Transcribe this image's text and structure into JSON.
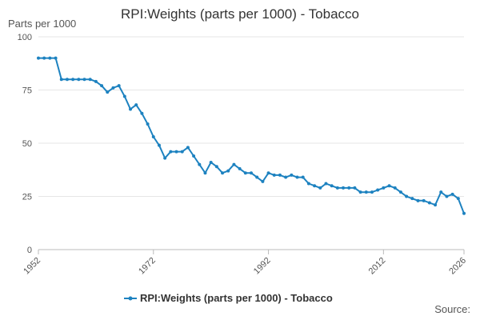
{
  "chart_data": {
    "type": "line",
    "title": "RPI:Weights (parts per 1000) - Tobacco",
    "ylabel": "Parts per 1000",
    "xlabel": "",
    "xlim": [
      1952,
      2026
    ],
    "ylim": [
      0,
      100
    ],
    "y_ticks": [
      0,
      25,
      50,
      75,
      100
    ],
    "x_ticks": [
      1952,
      1972,
      1992,
      2012,
      2026
    ],
    "grid": true,
    "legend_position": "bottom",
    "color": "#1d82c0",
    "series": [
      {
        "name": "RPI:Weights (parts per 1000) - Tobacco",
        "x": [
          1952,
          1953,
          1954,
          1955,
          1956,
          1957,
          1958,
          1959,
          1960,
          1961,
          1962,
          1963,
          1964,
          1965,
          1966,
          1967,
          1968,
          1969,
          1970,
          1971,
          1972,
          1973,
          1974,
          1975,
          1976,
          1977,
          1978,
          1979,
          1980,
          1981,
          1982,
          1983,
          1984,
          1985,
          1986,
          1987,
          1988,
          1989,
          1990,
          1991,
          1992,
          1993,
          1994,
          1995,
          1996,
          1997,
          1998,
          1999,
          2000,
          2001,
          2002,
          2003,
          2004,
          2005,
          2006,
          2007,
          2008,
          2009,
          2010,
          2011,
          2012,
          2013,
          2014,
          2015,
          2016,
          2017,
          2018,
          2019,
          2020,
          2021,
          2022,
          2023,
          2024,
          2025,
          2026
        ],
        "y": [
          90,
          90,
          90,
          90,
          80,
          80,
          80,
          80,
          80,
          80,
          79,
          77,
          74,
          76,
          77,
          72,
          66,
          68,
          64,
          59,
          53,
          49,
          43,
          46,
          46,
          46,
          48,
          44,
          40,
          36,
          41,
          39,
          36,
          37,
          40,
          38,
          36,
          36,
          34,
          32,
          36,
          35,
          35,
          34,
          35,
          34,
          34,
          31,
          30,
          29,
          31,
          30,
          29,
          29,
          29,
          29,
          27,
          27,
          27,
          28,
          29,
          30,
          29,
          27,
          25,
          24,
          23,
          23,
          22,
          21,
          27,
          25,
          26,
          24,
          17
        ]
      }
    ]
  },
  "source_label": "Source:"
}
